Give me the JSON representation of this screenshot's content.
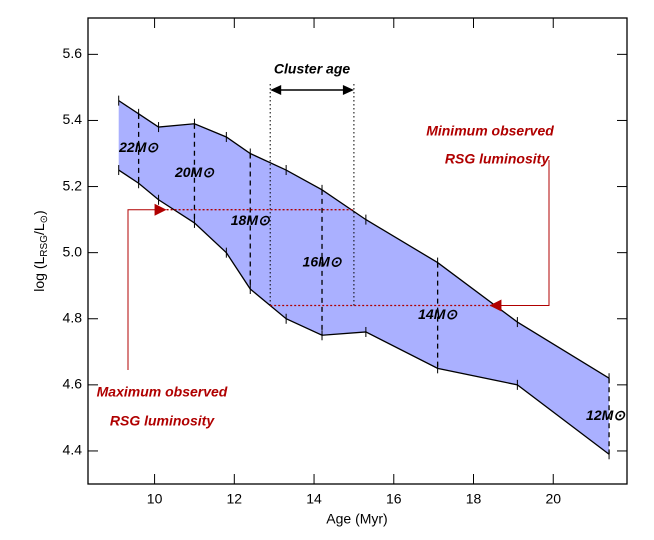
{
  "chart_data": {
    "type": "band",
    "xlabel": "Age (Myr)",
    "ylabel_parts": [
      "log (L",
      "RSG",
      "/L",
      "⊙",
      ")"
    ],
    "xlim": [
      8.33,
      21.85
    ],
    "xticks": [
      10,
      12,
      14,
      16,
      18,
      20
    ],
    "ylim": [
      4.3,
      5.71
    ],
    "yticks": [
      4.4,
      4.6,
      4.8,
      {
        "value": 5,
        "label": "5.0"
      },
      5.2,
      5.4,
      5.6
    ],
    "color": "#aab0ff",
    "x": [
      9.1,
      9.6,
      10.1,
      11.0,
      11.8,
      12.4,
      13.3,
      14.2,
      15.3,
      17.1,
      19.1,
      21.4
    ],
    "y_upper": [
      5.46,
      5.42,
      5.38,
      5.39,
      5.35,
      5.3,
      5.25,
      5.19,
      5.1,
      4.97,
      4.79,
      4.62
    ],
    "y_lower": [
      5.25,
      5.21,
      5.16,
      5.09,
      5.0,
      4.89,
      4.8,
      4.75,
      4.76,
      4.65,
      4.6,
      4.39
    ],
    "tracks": {
      "x": [
        9.6,
        11.0,
        12.4,
        14.2,
        17.1,
        21.4
      ],
      "labels": [
        "22M⊙",
        "20M⊙",
        "18M⊙",
        "16M⊙",
        "14M⊙",
        "12M⊙"
      ]
    },
    "cluster_age": {
      "label": "Cluster age",
      "range": [
        12.9,
        15.0
      ]
    },
    "max_luminosity": {
      "label": [
        "Maximum observed",
        "RSG luminosity"
      ],
      "value": 5.13,
      "xrange": [
        10.1,
        15.0
      ]
    },
    "min_luminosity": {
      "label": [
        "Minimum observed",
        "RSG luminosity"
      ],
      "value": 4.84,
      "xrange": [
        12.9,
        18.6
      ]
    }
  }
}
